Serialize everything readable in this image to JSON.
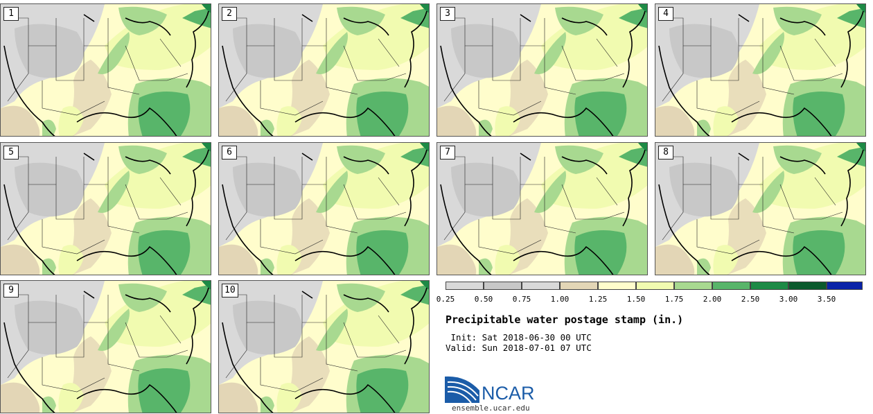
{
  "panels": [
    {
      "label": "1"
    },
    {
      "label": "2"
    },
    {
      "label": "3"
    },
    {
      "label": "4"
    },
    {
      "label": "5"
    },
    {
      "label": "6"
    },
    {
      "label": "7"
    },
    {
      "label": "8"
    },
    {
      "label": "9"
    },
    {
      "label": "10"
    }
  ],
  "colorbar": {
    "ticks": [
      "0.25",
      "0.50",
      "0.75",
      "1.00",
      "1.25",
      "1.50",
      "1.75",
      "2.00",
      "2.50",
      "3.00",
      "3.50"
    ],
    "colors": [
      "#d9d9d9",
      "#c8c8c8",
      "#d9d9d9",
      "#e3d6b6",
      "#fffdcc",
      "#f1fbb0",
      "#a8d990",
      "#58b56a",
      "#1d8a46",
      "#0b5a2d",
      "#0a23a8"
    ]
  },
  "title": "Precipitable water postage stamp (in.)",
  "init": " Init: Sat 2018-06-30 00 UTC",
  "valid": "Valid: Sun 2018-07-01 07 UTC",
  "logo": {
    "text": "NCAR",
    "site": "ensemble.ucar.edu",
    "color": "#1b5ca8"
  }
}
